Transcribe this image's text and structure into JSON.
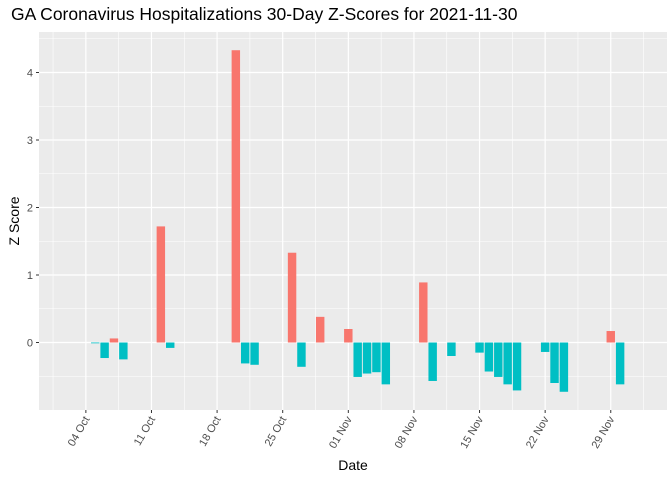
{
  "chart_data": {
    "type": "bar",
    "title": "GA Coronavirus Hospitalizations 30-Day Z-Scores for 2021-11-30",
    "xlabel": "Date",
    "ylabel": "Z Score",
    "ylim": [
      -1.0,
      4.6
    ],
    "y_ticks": [
      0,
      1,
      2,
      3,
      4
    ],
    "x_range": [
      "2021-09-29",
      "2021-12-05"
    ],
    "x_ticks": [
      {
        "date": "2021-10-04",
        "label": "04 Oct"
      },
      {
        "date": "2021-10-11",
        "label": "11 Oct"
      },
      {
        "date": "2021-10-18",
        "label": "18 Oct"
      },
      {
        "date": "2021-10-25",
        "label": "25 Oct"
      },
      {
        "date": "2021-11-01",
        "label": "01 Nov"
      },
      {
        "date": "2021-11-08",
        "label": "08 Nov"
      },
      {
        "date": "2021-11-15",
        "label": "15 Nov"
      },
      {
        "date": "2021-11-22",
        "label": "22 Nov"
      },
      {
        "date": "2021-11-29",
        "label": "29 Nov"
      }
    ],
    "colors": {
      "positive": "#F8766D",
      "negative": "#00BFC4"
    },
    "grid": true,
    "legend": "none",
    "points": [
      {
        "date": "2021-10-05",
        "value": -0.01
      },
      {
        "date": "2021-10-06",
        "value": -0.23
      },
      {
        "date": "2021-10-07",
        "value": 0.06
      },
      {
        "date": "2021-10-08",
        "value": -0.25
      },
      {
        "date": "2021-10-12",
        "value": 1.72
      },
      {
        "date": "2021-10-13",
        "value": -0.08
      },
      {
        "date": "2021-10-20",
        "value": 4.33
      },
      {
        "date": "2021-10-21",
        "value": -0.31
      },
      {
        "date": "2021-10-22",
        "value": -0.33
      },
      {
        "date": "2021-10-26",
        "value": 1.33
      },
      {
        "date": "2021-10-27",
        "value": -0.36
      },
      {
        "date": "2021-10-29",
        "value": 0.38
      },
      {
        "date": "2021-11-01",
        "value": 0.2
      },
      {
        "date": "2021-11-02",
        "value": -0.51
      },
      {
        "date": "2021-11-03",
        "value": -0.46
      },
      {
        "date": "2021-11-04",
        "value": -0.44
      },
      {
        "date": "2021-11-05",
        "value": -0.62
      },
      {
        "date": "2021-11-09",
        "value": 0.89
      },
      {
        "date": "2021-11-10",
        "value": -0.57
      },
      {
        "date": "2021-11-12",
        "value": -0.2
      },
      {
        "date": "2021-11-15",
        "value": -0.15
      },
      {
        "date": "2021-11-16",
        "value": -0.43
      },
      {
        "date": "2021-11-17",
        "value": -0.51
      },
      {
        "date": "2021-11-18",
        "value": -0.62
      },
      {
        "date": "2021-11-19",
        "value": -0.71
      },
      {
        "date": "2021-11-22",
        "value": -0.14
      },
      {
        "date": "2021-11-23",
        "value": -0.6
      },
      {
        "date": "2021-11-24",
        "value": -0.73
      },
      {
        "date": "2021-11-29",
        "value": 0.17
      },
      {
        "date": "2021-11-30",
        "value": -0.62
      }
    ]
  }
}
